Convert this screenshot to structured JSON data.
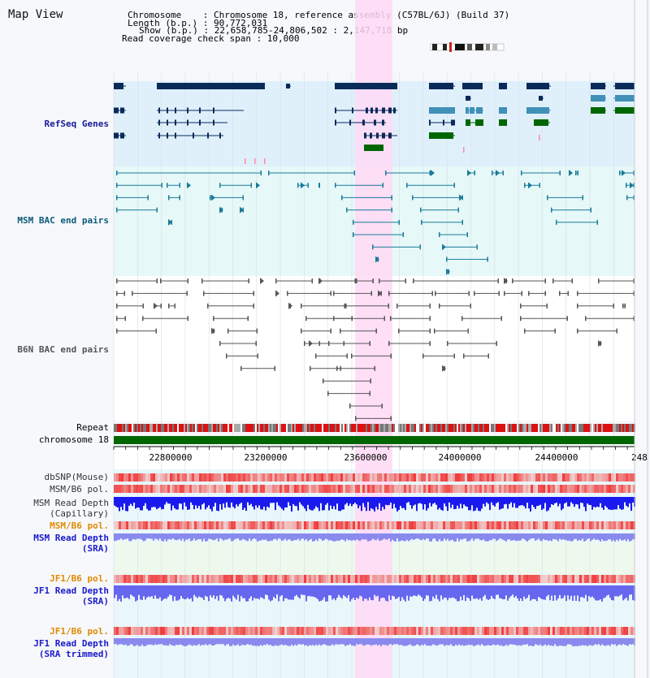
{
  "title": "Map View",
  "info": {
    "chromosome_line": "Chromosome    : Chromosome 18, reference assembly (C57BL/6J) (Build 37)",
    "length_line": "Length (b.p.) : 90,772,031",
    "show_line": "Show (b.p.) : 22,658,785-24,806,502 : 2,147,718 bp",
    "read_coverage_line": "Read coverage check span : 10,000"
  },
  "tracks": {
    "refseq": "RefSeq Genes",
    "msm_bac": "MSM BAC end pairs",
    "b6n_bac": "B6N BAC end pairs",
    "repeat": "Repeat",
    "chromosome": "chromosome 18",
    "dbsnp": "dbSNP(Mouse)",
    "msm_b6_pol_1": "MSM/B6 pol.",
    "msm_depth_cap_1": "MSM Read Depth",
    "msm_depth_cap_2": "(Capillary)",
    "msm_b6_pol_2": "MSM/B6 pol.",
    "msm_depth_sra_1": "MSM Read Depth",
    "msm_depth_sra_2": "(SRA)",
    "jf1_b6_pol_1": "JF1/B6 pol.",
    "jf1_depth_sra_1": "JF1 Read Depth",
    "jf1_depth_sra_2": "(SRA)",
    "jf1_b6_pol_2": "JF1/B6 pol.",
    "jf1_depth_trim_1": "JF1 Read Depth",
    "jf1_depth_trim_2": "(SRA trimmed)"
  },
  "axis": {
    "ticks": [
      "22800000",
      "23200000",
      "23600000",
      "24000000",
      "24400000",
      "248"
    ]
  },
  "colors": {
    "refseq_label": "#1a1a9a",
    "msm_label": "#0a5a7a",
    "b6n_label": "#555555",
    "orange_label": "#e08a00",
    "blue_label": "#1a1acc",
    "gene_dark": "#0a2a5a",
    "gene_blue": "#4090b8",
    "gene_green": "#006600",
    "highlight": "#ffd9f5",
    "depth_dark": "#1a1aee",
    "depth_light": "#8a8aee"
  }
}
